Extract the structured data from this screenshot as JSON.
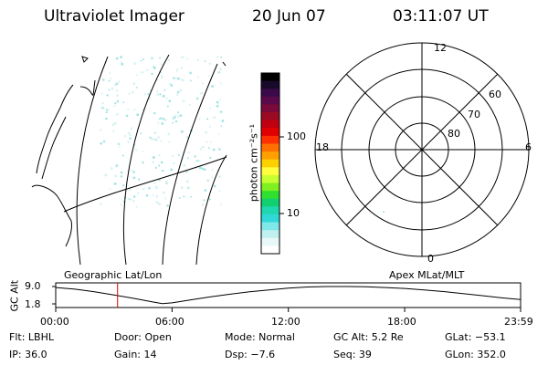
{
  "header": {
    "title": "Ultraviolet Imager",
    "date": "20 Jun 07",
    "time": "03:11:07 UT"
  },
  "colorbar": {
    "label": "photon cm⁻²s⁻¹",
    "ticks": [
      "100",
      "10"
    ],
    "colors": [
      "#000000",
      "#1a0a2a",
      "#3a0a4a",
      "#5a0a4a",
      "#7a0a3a",
      "#9a0a22",
      "#c00010",
      "#e00000",
      "#ff3000",
      "#ff7000",
      "#ffa000",
      "#ffd000",
      "#ffff40",
      "#c8ff30",
      "#80f020",
      "#30e030",
      "#10d070",
      "#20d8b0",
      "#30d8d8",
      "#80e8e8",
      "#c0f0f0",
      "#e8f8f8",
      "#ffffff"
    ]
  },
  "polar_plot": {
    "labels": {
      "top": "12",
      "bottom": "0",
      "left": "18",
      "right": "6"
    },
    "rings": [
      "80",
      "70",
      "60"
    ]
  },
  "map_labels": {
    "left": "Geographic Lat/Lon",
    "right": "Apex MLat/MLT"
  },
  "status": {
    "flt": "Flt: LBHL",
    "door": "Door: Open",
    "mode": "Mode: Normal",
    "gc_alt": "GC Alt: 5.2 Re",
    "glat": "GLat: −53.1",
    "ip": "IP: 36.0",
    "gain": "Gain: 14",
    "dsp": "Dsp:    −7.6",
    "seq": "Seq: 39",
    "glon": "GLon: 352.0"
  },
  "chart_data": {
    "type": "line",
    "ylabel": "GC Alt",
    "yticks": [
      "9.0",
      "1.8"
    ],
    "ylim": [
      1.8,
      9.0
    ],
    "xticks": [
      "00:00",
      "06:00",
      "12:00",
      "18:00",
      "23:59"
    ],
    "xlim_hours": [
      0,
      23.98
    ],
    "series": [
      {
        "x": [
          0,
          1,
          2,
          3,
          4,
          5,
          5.5,
          6,
          7,
          8,
          9,
          10,
          11,
          12,
          13,
          14,
          15,
          16,
          17,
          18,
          19,
          20,
          21,
          22,
          23,
          23.98
        ],
        "y": [
          8.6,
          7.9,
          6.8,
          5.5,
          4.1,
          2.6,
          1.9,
          2.2,
          3.5,
          4.7,
          5.8,
          6.8,
          7.6,
          8.3,
          8.8,
          9.0,
          9.0,
          8.9,
          8.6,
          8.2,
          7.6,
          6.9,
          6.1,
          5.2,
          4.3,
          3.6
        ]
      }
    ],
    "current_time_hours": 3.19,
    "current_time_color": "#e00000"
  }
}
